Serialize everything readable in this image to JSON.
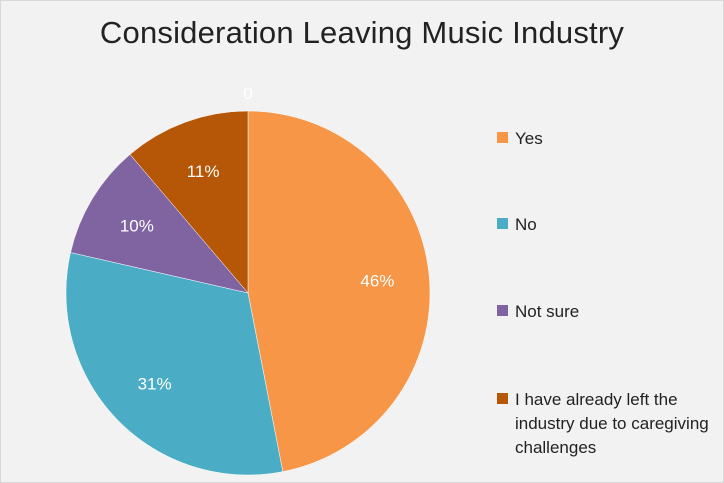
{
  "chart_data": {
    "type": "pie",
    "title": "Consideration Leaving Music Industry",
    "categories": [
      "Yes",
      "No",
      "Not sure",
      "I have already left the industry due to caregiving challenges"
    ],
    "values": [
      46,
      31,
      10,
      11
    ],
    "data_labels": [
      "46%",
      "31%",
      "10%",
      "11%"
    ],
    "extra_label": "0",
    "colors": [
      "#f79646",
      "#4bacc6",
      "#8064a2",
      "#b65708"
    ],
    "legend_position": "right",
    "start": "12 o'clock, clockwise"
  }
}
